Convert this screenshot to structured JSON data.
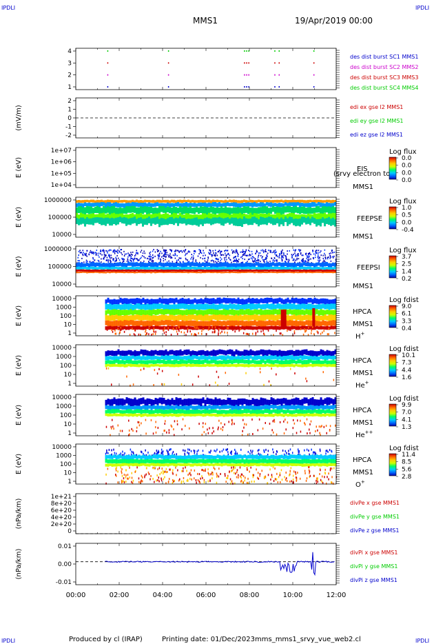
{
  "header": {
    "corner_tl": "IPDLI",
    "corner_tr": "IPDLI",
    "corner_bl": "IPDLI",
    "corner_br": "IPDLI",
    "title": "MMS1",
    "date": "19/Apr/2019 00:00"
  },
  "footer": {
    "produced": "Produced by cl (IRAP)",
    "printing": "Printing date: 01/Dec/2023",
    "file": "mms_mms1_srvy_vue_web2.cl"
  },
  "colors": {
    "red": "#cc0000",
    "green": "#00cc00",
    "blue": "#0000cc",
    "magenta": "#cc00cc",
    "spectrogram_scale": [
      "#0000aa",
      "#0066ff",
      "#00ccff",
      "#00ff66",
      "#ccff00",
      "#ffcc00",
      "#ff6600",
      "#cc0000"
    ]
  },
  "chart_data": [
    {
      "type": "scatter",
      "panel": "burst",
      "ylim": [
        0.5,
        4.5
      ],
      "y_ticks": [
        "4",
        "3",
        "2",
        "1"
      ],
      "series": [
        {
          "name": "des dist burst SC1 MMS1",
          "y": 1,
          "color": "#0000cc",
          "x_hours": [
            1.45,
            4.25,
            7.75,
            7.85,
            7.95,
            9.15,
            9.35,
            10.95
          ]
        },
        {
          "name": "des dist burst SC2 MMS2",
          "y": 2,
          "color": "#cc00cc",
          "x_hours": [
            1.45,
            4.25,
            7.75,
            7.85,
            7.95,
            9.15,
            9.35,
            10.95
          ]
        },
        {
          "name": "des dist burst SC3 MMS3",
          "y": 3,
          "color": "#cc0000",
          "x_hours": [
            1.45,
            4.25,
            7.75,
            7.85,
            7.95,
            9.15,
            9.35,
            10.95
          ]
        },
        {
          "name": "des dist burst SC4 MMS4",
          "y": 4,
          "color": "#00cc00",
          "x_hours": [
            1.45,
            4.25,
            7.75,
            7.85,
            7.95,
            9.15,
            9.35,
            10.95
          ]
        }
      ]
    },
    {
      "type": "line",
      "panel": "edi",
      "ylabel": "(mV/m)",
      "ylim": [
        -2.5,
        2.5
      ],
      "y_ticks": [
        "2",
        "1",
        "0",
        "-1",
        "-2"
      ],
      "series": [
        {
          "name": "edi ex gse l2 MMS1",
          "color": "#cc0000"
        },
        {
          "name": "edi ey gse l2 MMS1",
          "color": "#00cc00"
        },
        {
          "name": "edi ez gse l2 MMS1",
          "color": "#0000cc"
        }
      ]
    },
    {
      "type": "heatmap",
      "panel": "EIS",
      "ylabel": "E (eV)",
      "y_ticks": [
        "1e+07",
        "1e+06",
        "1e+05",
        "1e+04"
      ],
      "instrument": "EIS",
      "overlay": "(srvy electron tof",
      "spacecraft": "MMS1",
      "colorbar_title": "Log flux",
      "colorbar_ticks": [
        "0.0",
        "0.0",
        "0.0",
        "0.0"
      ]
    },
    {
      "type": "heatmap",
      "panel": "FEEPSE",
      "ylabel": "E (eV)",
      "y_ticks": [
        "1000000",
        "100000",
        "10000"
      ],
      "instrument": "FEEPSE",
      "spacecraft": "MMS1",
      "colorbar_title": "Log flux",
      "colorbar_ticks": [
        "1.0",
        "0.5",
        "0.0",
        "-0.4"
      ]
    },
    {
      "type": "heatmap",
      "panel": "FEEPSI",
      "ylabel": "E (eV)",
      "y_ticks": [
        "1000000",
        "100000",
        "10000"
      ],
      "instrument": "FEEPSI",
      "spacecraft": "MMS1",
      "colorbar_title": "Log flux",
      "colorbar_ticks": [
        "3.7",
        "2.5",
        "1.4",
        "0.2"
      ]
    },
    {
      "type": "heatmap",
      "panel": "HPCA H+",
      "ylabel": "E (eV)",
      "y_ticks": [
        "10000",
        "1000",
        "100",
        "10",
        "1"
      ],
      "instrument": "HPCA",
      "spacecraft": "MMS1",
      "species": "H",
      "species_sup": "+",
      "colorbar_title": "Log fdist",
      "colorbar_ticks": [
        "9.0",
        "6.1",
        "3.3",
        "0.4"
      ]
    },
    {
      "type": "heatmap",
      "panel": "HPCA He+",
      "ylabel": "E (eV)",
      "y_ticks": [
        "10000",
        "1000",
        "100",
        "10",
        "1"
      ],
      "instrument": "HPCA",
      "spacecraft": "MMS1",
      "species": "He",
      "species_sup": "+",
      "colorbar_title": "Log fdist",
      "colorbar_ticks": [
        "10.1",
        "7.3",
        "4.4",
        "1.6"
      ]
    },
    {
      "type": "heatmap",
      "panel": "HPCA He++",
      "ylabel": "E (eV)",
      "y_ticks": [
        "10000",
        "1000",
        "100",
        "10",
        "1"
      ],
      "instrument": "HPCA",
      "spacecraft": "MMS1",
      "species": "He",
      "species_sup": "++",
      "colorbar_title": "Log fdist",
      "colorbar_ticks": [
        "9.9",
        "7.0",
        "4.1",
        "1.3"
      ]
    },
    {
      "type": "heatmap",
      "panel": "HPCA O+",
      "ylabel": "E (eV)",
      "y_ticks": [
        "10000",
        "1000",
        "100",
        "10",
        "1"
      ],
      "instrument": "HPCA",
      "spacecraft": "MMS1",
      "species": "O",
      "species_sup": "+",
      "colorbar_title": "Log fdist",
      "colorbar_ticks": [
        "11.4",
        "8.5",
        "5.6",
        "2.8"
      ]
    },
    {
      "type": "line",
      "panel": "divPe",
      "ylabel": "(nPa/km)",
      "ylim": [
        0,
        1.1e+21
      ],
      "y_ticks": [
        "1e+21",
        "8e+20",
        "6e+20",
        "4e+20",
        "2e+20",
        "0"
      ],
      "series": [
        {
          "name": "divPe x gse MMS1",
          "color": "#cc0000"
        },
        {
          "name": "divPe y gse MMS1",
          "color": "#00cc00"
        },
        {
          "name": "divPe z gse MMS1",
          "color": "#0000cc"
        }
      ]
    },
    {
      "type": "line",
      "panel": "divPi",
      "ylabel": "(nPa/km)",
      "ylim": [
        -0.015,
        0.012
      ],
      "y_ticks": [
        "0.01",
        "0.00",
        "-0.01"
      ],
      "series": [
        {
          "name": "divPi x gse MMS1",
          "color": "#cc0000"
        },
        {
          "name": "divPi y gse MMS1",
          "color": "#00cc00"
        },
        {
          "name": "divPi z gse MMS1",
          "color": "#0000cc"
        }
      ]
    }
  ],
  "x_axis": {
    "ticks": [
      "00:00",
      "02:00",
      "04:00",
      "06:00",
      "08:00",
      "10:00",
      "12:00"
    ],
    "range_hours": [
      0,
      12
    ]
  }
}
